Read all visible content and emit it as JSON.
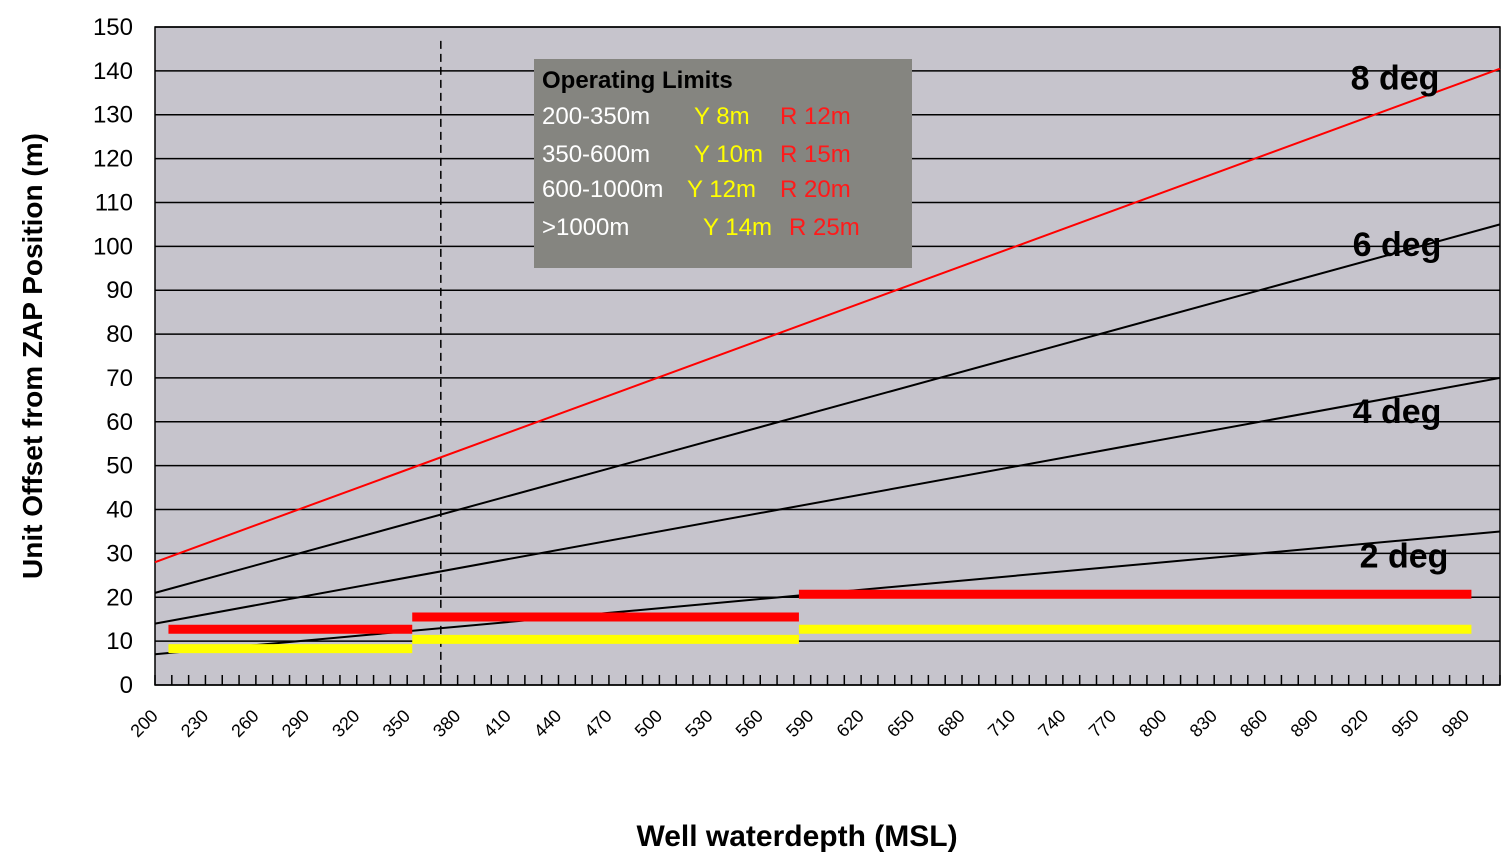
{
  "chart_data": {
    "type": "line",
    "xlabel": "Well waterdepth (MSL)",
    "ylabel": "Unit Offset from ZAP Position (m)",
    "xlim": [
      200,
      1000
    ],
    "ylim": [
      0,
      150
    ],
    "x_ticks": [
      200,
      230,
      260,
      290,
      320,
      350,
      380,
      410,
      440,
      470,
      500,
      530,
      560,
      590,
      620,
      650,
      680,
      710,
      740,
      770,
      800,
      830,
      860,
      890,
      920,
      950,
      980
    ],
    "y_ticks": [
      0,
      10,
      20,
      30,
      40,
      50,
      60,
      70,
      80,
      90,
      100,
      110,
      120,
      130,
      140,
      150
    ],
    "grid": "horizontal",
    "background_color": "#c6c4cc",
    "reference_line": {
      "x": 370,
      "style": "dashed"
    },
    "series": [
      {
        "name": "8 deg",
        "color": "#ff0000",
        "x": [
          200,
          1000
        ],
        "y": [
          28,
          140.5
        ]
      },
      {
        "name": "6 deg",
        "color": "#000000",
        "x": [
          200,
          1000
        ],
        "y": [
          21,
          105
        ]
      },
      {
        "name": "4 deg",
        "color": "#000000",
        "x": [
          200,
          1000
        ],
        "y": [
          14,
          70
        ]
      },
      {
        "name": "2 deg",
        "color": "#000000",
        "x": [
          200,
          1000
        ],
        "y": [
          7,
          35
        ]
      }
    ],
    "limit_bars": [
      {
        "color": "#ff0000",
        "segments": [
          {
            "x0": 208,
            "x1": 353,
            "y": 12.7
          },
          {
            "x0": 353,
            "x1": 583,
            "y": 15.5
          },
          {
            "x0": 583,
            "x1": 983,
            "y": 20.7
          }
        ]
      },
      {
        "color": "#ffff00",
        "segments": [
          {
            "x0": 208,
            "x1": 353,
            "y": 8.3
          },
          {
            "x0": 353,
            "x1": 583,
            "y": 10.4
          },
          {
            "x0": 583,
            "x1": 983,
            "y": 12.7
          }
        ]
      }
    ],
    "line_labels": [
      "8 deg",
      "6 deg",
      "4 deg",
      "2 deg"
    ],
    "legend": {
      "title": "Operating Limits",
      "rows": [
        {
          "range": "200-350m",
          "yellow": "Y 8m",
          "red": "R 12m"
        },
        {
          "range": "350-600m",
          "yellow": "Y 10m",
          "red": "R 15m"
        },
        {
          "range": "600-1000m",
          "yellow": "Y 12m",
          "red": "R 20m"
        },
        {
          "range": ">1000m",
          "yellow": "Y 14m",
          "red": "R 25m"
        }
      ]
    }
  }
}
